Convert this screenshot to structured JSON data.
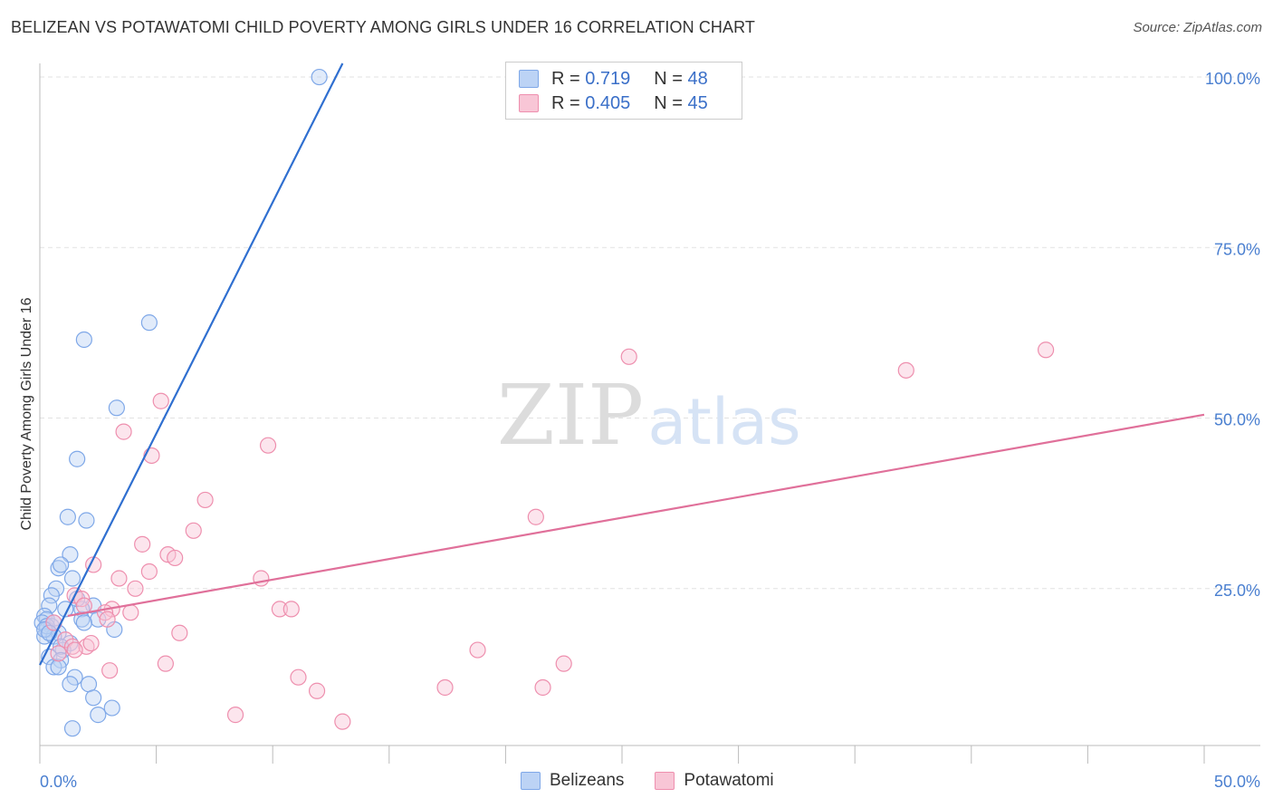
{
  "chart_data": {
    "type": "scatter",
    "title": "BELIZEAN VS POTAWATOMI CHILD POVERTY AMONG GIRLS UNDER 16 CORRELATION CHART",
    "source": "Source: ZipAtlas.com",
    "xlabel": "",
    "ylabel": "Child Poverty Among Girls Under 16",
    "xlim": [
      0,
      50
    ],
    "ylim": [
      2,
      102
    ],
    "x_tick_labels": [
      "0.0%",
      "50.0%"
    ],
    "y_tick_labels": [
      {
        "value": 25,
        "label": "25.0%"
      },
      {
        "value": 50,
        "label": "50.0%"
      },
      {
        "value": 75,
        "label": "75.0%"
      },
      {
        "value": 100,
        "label": "100.0%"
      }
    ],
    "watermark": {
      "zip": "ZIP",
      "atlas": "atlas"
    },
    "legend": [
      {
        "name": "Belizeans",
        "r_label": "R =",
        "r": "0.719",
        "n_label": "N =",
        "n": "48",
        "color": "#7fa8e8",
        "fill": "#bcd3f5"
      },
      {
        "name": "Potawatomi",
        "r_label": "R =",
        "r": "0.405",
        "n_label": "N =",
        "n": "45",
        "color": "#ee8fae",
        "fill": "#f8c6d6"
      }
    ],
    "series": [
      {
        "name": "Belizeans",
        "color": "#7fa8e8",
        "line_color": "#2f6fd0",
        "trend": [
          [
            0,
            13.8
          ],
          [
            13.0,
            102
          ]
        ],
        "points": [
          [
            12.0,
            100
          ],
          [
            4.7,
            64
          ],
          [
            1.9,
            61.5
          ],
          [
            3.3,
            51.5
          ],
          [
            1.6,
            44
          ],
          [
            1.2,
            35.5
          ],
          [
            2.0,
            35
          ],
          [
            1.3,
            30
          ],
          [
            0.8,
            28
          ],
          [
            0.9,
            28.5
          ],
          [
            1.4,
            26.5
          ],
          [
            0.7,
            25
          ],
          [
            0.5,
            24
          ],
          [
            0.4,
            22.5
          ],
          [
            1.1,
            22
          ],
          [
            2.3,
            22.5
          ],
          [
            1.8,
            22
          ],
          [
            0.2,
            21
          ],
          [
            0.3,
            20.5
          ],
          [
            1.8,
            20.5
          ],
          [
            2.5,
            20.5
          ],
          [
            1.9,
            20
          ],
          [
            0.1,
            20
          ],
          [
            0.5,
            19.5
          ],
          [
            0.3,
            19
          ],
          [
            0.8,
            18.5
          ],
          [
            0.2,
            18
          ],
          [
            0.6,
            18
          ],
          [
            3.2,
            19
          ],
          [
            1.3,
            17
          ],
          [
            1.0,
            16
          ],
          [
            0.9,
            16.5
          ],
          [
            0.4,
            15
          ],
          [
            0.9,
            14.5
          ],
          [
            0.6,
            13.5
          ],
          [
            0.8,
            13.5
          ],
          [
            1.5,
            12
          ],
          [
            1.3,
            11
          ],
          [
            2.1,
            11
          ],
          [
            2.3,
            9
          ],
          [
            3.1,
            7.5
          ],
          [
            2.5,
            6.5
          ],
          [
            1.4,
            4.5
          ],
          [
            0.3,
            19.5
          ],
          [
            0.6,
            20
          ],
          [
            0.2,
            19
          ],
          [
            0.4,
            18.5
          ],
          [
            1.6,
            23.5
          ]
        ]
      },
      {
        "name": "Potawatomi",
        "color": "#ee8fae",
        "line_color": "#e0709a",
        "trend": [
          [
            1.2,
            21
          ],
          [
            50,
            50.5
          ]
        ],
        "points": [
          [
            43.2,
            60
          ],
          [
            25.3,
            59
          ],
          [
            37.2,
            57
          ],
          [
            5.2,
            52.5
          ],
          [
            3.6,
            48
          ],
          [
            9.8,
            46
          ],
          [
            4.8,
            44.5
          ],
          [
            7.1,
            38
          ],
          [
            21.3,
            35.5
          ],
          [
            6.6,
            33.5
          ],
          [
            4.4,
            31.5
          ],
          [
            5.5,
            30
          ],
          [
            5.8,
            29.5
          ],
          [
            2.3,
            28.5
          ],
          [
            3.4,
            26.5
          ],
          [
            4.7,
            27.5
          ],
          [
            9.5,
            26.5
          ],
          [
            4.1,
            25
          ],
          [
            1.5,
            24
          ],
          [
            1.8,
            23.5
          ],
          [
            10.3,
            22
          ],
          [
            10.8,
            22
          ],
          [
            3.1,
            22
          ],
          [
            3.9,
            21.5
          ],
          [
            2.8,
            21.5
          ],
          [
            2.9,
            20.5
          ],
          [
            6.0,
            18.5
          ],
          [
            1.1,
            17.5
          ],
          [
            1.4,
            16.5
          ],
          [
            2.0,
            16.5
          ],
          [
            0.8,
            15.5
          ],
          [
            1.5,
            16
          ],
          [
            18.8,
            16
          ],
          [
            22.5,
            14
          ],
          [
            5.4,
            14
          ],
          [
            3.0,
            13
          ],
          [
            11.1,
            12
          ],
          [
            17.4,
            10.5
          ],
          [
            21.6,
            10.5
          ],
          [
            11.9,
            10
          ],
          [
            8.4,
            6.5
          ],
          [
            13.0,
            5.5
          ],
          [
            2.2,
            17
          ],
          [
            0.6,
            20
          ],
          [
            1.9,
            22.5
          ]
        ]
      }
    ]
  }
}
